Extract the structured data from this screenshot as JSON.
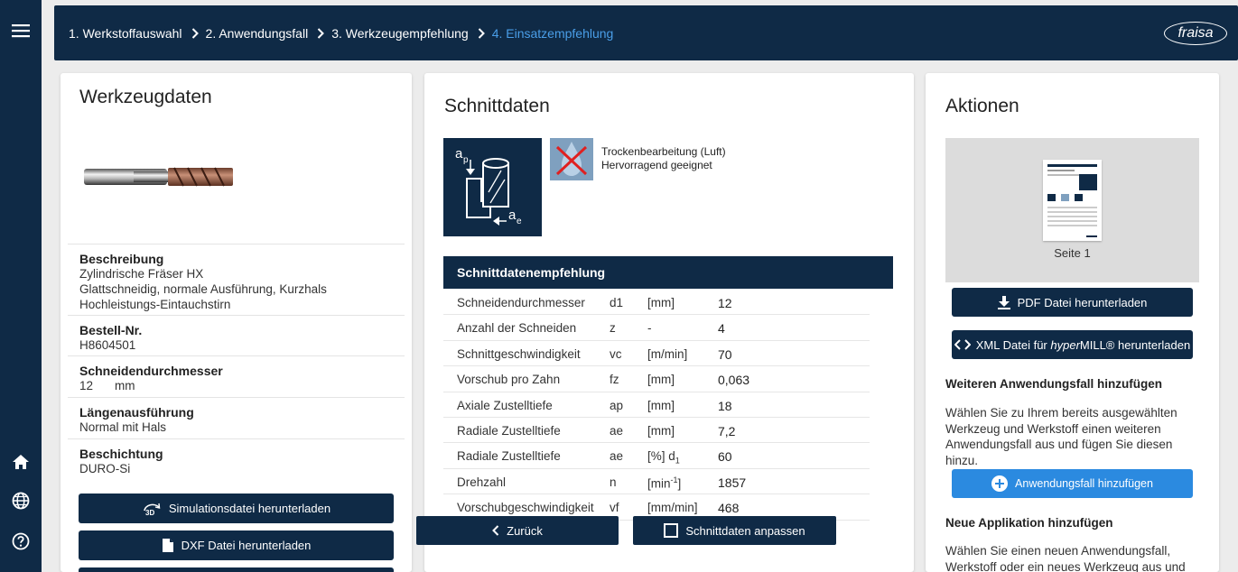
{
  "breadcrumb": [
    {
      "label": "1. Werkstoffauswahl",
      "active": false
    },
    {
      "label": "2. Anwendungsfall",
      "active": false
    },
    {
      "label": "3. Werkzeugempfehlung",
      "active": false
    },
    {
      "label": "4. Einsatzempfehlung",
      "active": true
    }
  ],
  "brand": {
    "logo_text": "fraisa"
  },
  "sidebar": {
    "icons": [
      "menu-icon",
      "home-icon",
      "globe-icon",
      "help-icon"
    ]
  },
  "tool_card": {
    "title": "Werkzeugdaten",
    "description_label": "Beschreibung",
    "description_lines": [
      "Zylindrische Fräser HX",
      "Glattschneidig, normale Ausführung, Kurzhals",
      "Hochleistungs-Eintauchstirn"
    ],
    "order_label": "Bestell-Nr.",
    "order_value": "H8604501",
    "diameter_label": "Schneidendurchmesser",
    "diameter_value": "12",
    "diameter_unit": "mm",
    "length_label": "Längenausführung",
    "length_value": "Normal mit Hals",
    "coating_label": "Beschichtung",
    "coating_value": "DURO-Si",
    "sim_button": "Simulationsdatei herunterladen",
    "sim_icon_text": "3D",
    "dxf_button": "DXF Datei herunterladen"
  },
  "cut_card": {
    "title": "Schnittdaten",
    "cooling_line1": "Trockenbearbeitung (Luft)",
    "cooling_line2": "Hervorragend geeignet",
    "ap_label": "a",
    "ap_sub": "p",
    "ae_label": "a",
    "ae_sub": "e",
    "table_title": "Schnittdatenempfehlung",
    "rows": [
      {
        "name": "Schneidendurchmesser",
        "symbol": "d1",
        "unit": "[mm]",
        "value": "12"
      },
      {
        "name": "Anzahl der Schneiden",
        "symbol": "z",
        "unit": "-",
        "value": "4"
      },
      {
        "name": "Schnittgeschwindigkeit",
        "symbol": "vc",
        "unit": "[m/min]",
        "value": "70"
      },
      {
        "name": "Vorschub pro Zahn",
        "symbol": "fz",
        "unit": "[mm]",
        "value": "0,063"
      },
      {
        "name": "Axiale Zustelltiefe",
        "symbol": "ap",
        "unit": "[mm]",
        "value": "18"
      },
      {
        "name": "Radiale Zustelltiefe",
        "symbol": "ae",
        "unit": "[mm]",
        "value": "7,2"
      },
      {
        "name": "Radiale Zustelltiefe",
        "symbol": "ae",
        "unit": "[%] d1",
        "value": "60"
      },
      {
        "name": "Drehzahl",
        "symbol": "n",
        "unit": "[min-1]",
        "value": "1857"
      },
      {
        "name": "Vorschubgeschwindigkeit",
        "symbol": "vf",
        "unit": "[mm/min]",
        "value": "468"
      }
    ],
    "back_button": "Zurück",
    "adjust_button": "Schnittdaten anpassen"
  },
  "actions_card": {
    "title": "Aktionen",
    "page_label": "Seite 1",
    "pdf_button": "PDF Datei herunterladen",
    "xml_button_prefix": "XML Datei für ",
    "xml_button_brand_a": "hyper",
    "xml_button_brand_b": "MILL®",
    "xml_button_suffix": " herunterladen",
    "add_case_title": "Weiteren Anwendungsfall hinzufügen",
    "add_case_text": "Wählen Sie zu Ihrem bereits ausgewählten Werkzeug und Werkstoff einen weiteren Anwendungsfall aus und fügen Sie diesen hinzu.",
    "add_case_button": "Anwendungsfall hinzufügen",
    "new_app_title": "Neue Applikation hinzufügen",
    "new_app_text": "Wählen Sie einen neuen Anwendungsfall, Werkstoff oder ein neues Werkzeug aus und fügen"
  }
}
